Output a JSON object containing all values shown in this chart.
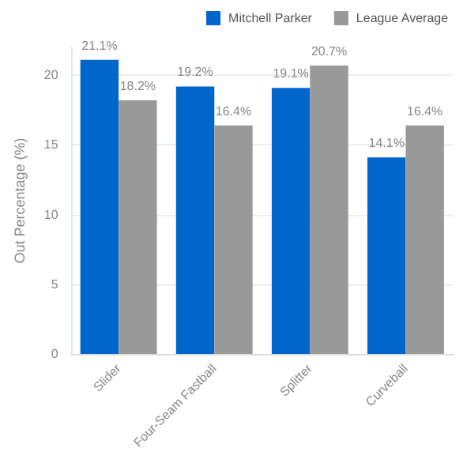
{
  "chart_data": {
    "type": "bar",
    "ylabel": "Out Percentage (%)",
    "categories": [
      "Slider",
      "Four-Seam Fastball",
      "Splitter",
      "Curveball"
    ],
    "series": [
      {
        "name": "Mitchell Parker",
        "color": "#0066cc",
        "values": [
          21.1,
          19.2,
          19.1,
          14.1
        ],
        "value_labels": [
          "21.1%",
          "19.2%",
          "19.1%",
          "14.1%"
        ]
      },
      {
        "name": "League Average",
        "color": "#999999",
        "values": [
          18.2,
          16.4,
          20.7,
          16.4
        ],
        "value_labels": [
          "18.2%",
          "16.4%",
          "20.7%",
          "16.4%"
        ]
      }
    ],
    "ylim": [
      0,
      22
    ],
    "yticks": [
      0,
      5,
      10,
      15,
      20
    ],
    "grid": "y",
    "legend": "top right"
  }
}
